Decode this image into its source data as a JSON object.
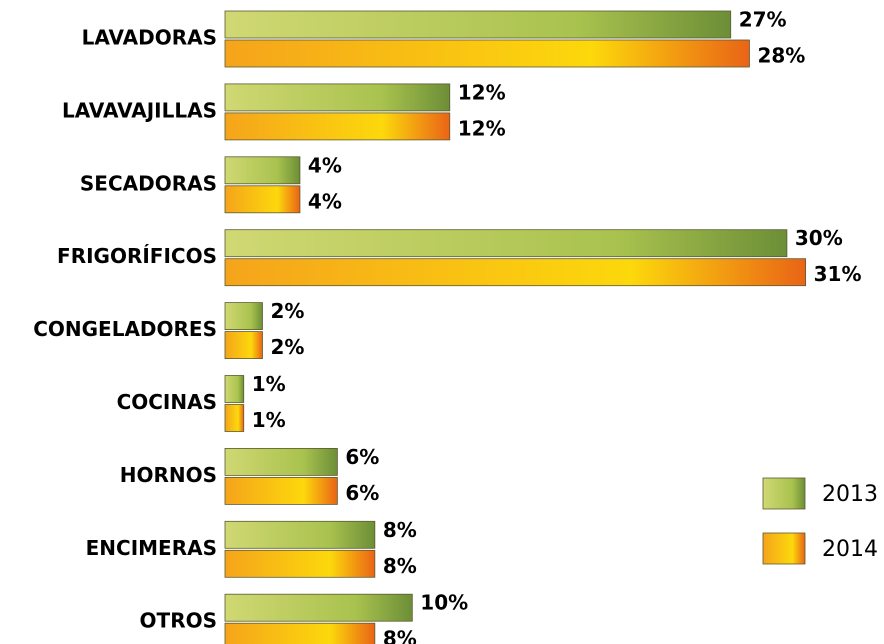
{
  "chart_data": {
    "type": "bar",
    "orientation": "horizontal",
    "categories": [
      "LAVADORAS",
      "LAVAVAJILLAS",
      "SECADORAS",
      "FRIGORÍFICOS",
      "CONGELADORES",
      "COCINAS",
      "HORNOS",
      "ENCIMERAS",
      "OTROS"
    ],
    "series": [
      {
        "name": "2013",
        "color": "#a9c24e",
        "values": [
          27,
          12,
          4,
          30,
          2,
          1,
          6,
          8,
          10
        ],
        "value_labels": [
          "27%",
          "12%",
          "4%",
          "30%",
          "2%",
          "1%",
          "6%",
          "8%",
          "10%"
        ]
      },
      {
        "name": "2014",
        "color": "#f7b21f",
        "values": [
          28,
          12,
          4,
          31,
          2,
          1,
          6,
          8,
          8
        ],
        "value_labels": [
          "28%",
          "12%",
          "4%",
          "31%",
          "2%",
          "1%",
          "6%",
          "8%",
          "8%"
        ]
      }
    ],
    "legend": "lower right"
  }
}
